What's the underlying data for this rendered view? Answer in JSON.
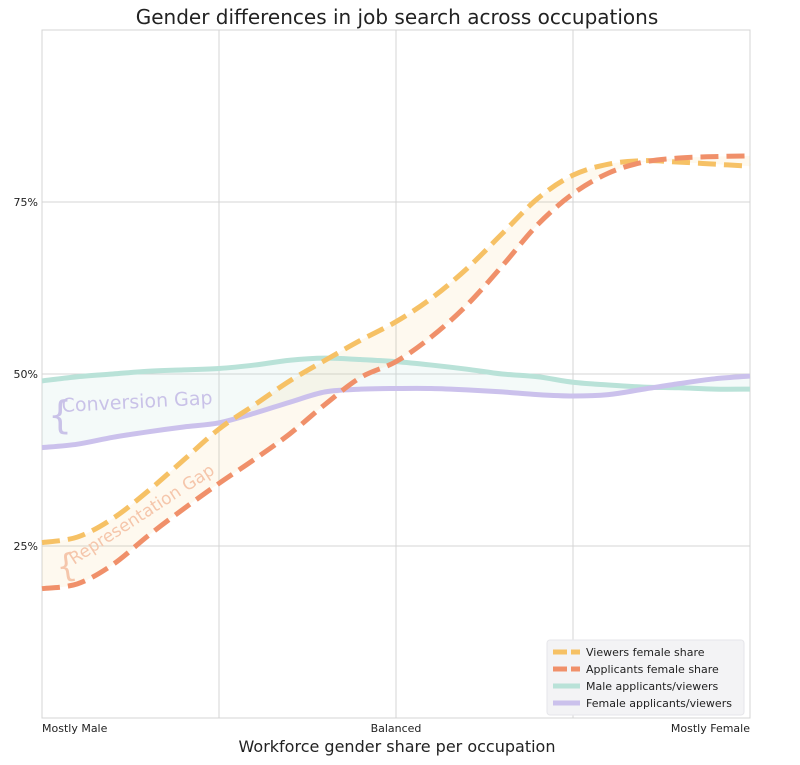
{
  "chart_data": {
    "type": "line",
    "title": "Gender differences in job search across occupations",
    "xlabel": "Workforce gender share per occupation",
    "ylabel": "",
    "x_ticks": [
      {
        "x": 0,
        "label": "Mostly Male"
      },
      {
        "x": 0.5,
        "label": "Balanced"
      },
      {
        "x": 1,
        "label": "Mostly Female"
      }
    ],
    "y_ticks": [
      {
        "y": 25,
        "label": "25%"
      },
      {
        "y": 50,
        "label": "50%"
      },
      {
        "y": 75,
        "label": "75%"
      }
    ],
    "xlim": [
      0,
      1
    ],
    "ylim": [
      0,
      100
    ],
    "grid": true,
    "legend_position": "bottom-right",
    "x": [
      0,
      0.05,
      0.1,
      0.15,
      0.2,
      0.25,
      0.3,
      0.35,
      0.4,
      0.45,
      0.5,
      0.55,
      0.6,
      0.65,
      0.7,
      0.75,
      0.8,
      0.85,
      0.9,
      0.95,
      1.0
    ],
    "series": [
      {
        "name": "Viewers female share",
        "style": "dashed",
        "color": "#f6c165",
        "values": [
          25.5,
          26.3,
          29,
          33,
          37.5,
          42,
          45.5,
          49,
          52,
          54.9,
          57.6,
          61,
          65.3,
          70.4,
          75.5,
          78.9,
          80.5,
          81,
          80.8,
          80.5,
          80.2
        ]
      },
      {
        "name": "Applicants female share",
        "style": "dashed",
        "color": "#f0906a",
        "values": [
          18.8,
          19.5,
          22.3,
          26.5,
          30.4,
          34.1,
          37.6,
          41.3,
          45.6,
          49.5,
          51.8,
          55.4,
          60,
          65.7,
          71.7,
          76.2,
          79.2,
          80.8,
          81.4,
          81.6,
          81.7
        ]
      },
      {
        "name": "Male applicants/viewers",
        "style": "solid",
        "color": "#b9e2d8",
        "values": [
          49,
          49.6,
          50,
          50.4,
          50.6,
          50.8,
          51.3,
          52,
          52.3,
          52.1,
          51.8,
          51.3,
          50.7,
          50,
          49.6,
          48.8,
          48.4,
          48.1,
          48,
          47.8,
          47.8
        ]
      },
      {
        "name": "Female applicants/viewers",
        "style": "solid",
        "color": "#cbc1ec",
        "values": [
          39.3,
          39.8,
          40.8,
          41.6,
          42.3,
          42.9,
          44.3,
          45.9,
          47.4,
          47.8,
          47.9,
          47.9,
          47.7,
          47.4,
          47,
          46.8,
          47,
          47.8,
          48.6,
          49.3,
          49.7
        ]
      }
    ],
    "annotations": [
      {
        "text": "Conversion Gap",
        "between": [
          "Male applicants/viewers",
          "Female applicants/viewers"
        ],
        "color": "#c9c2e8"
      },
      {
        "text": "Representation Gap",
        "between": [
          "Viewers female share",
          "Applicants female share"
        ],
        "color": "#f5c6ab"
      }
    ]
  }
}
